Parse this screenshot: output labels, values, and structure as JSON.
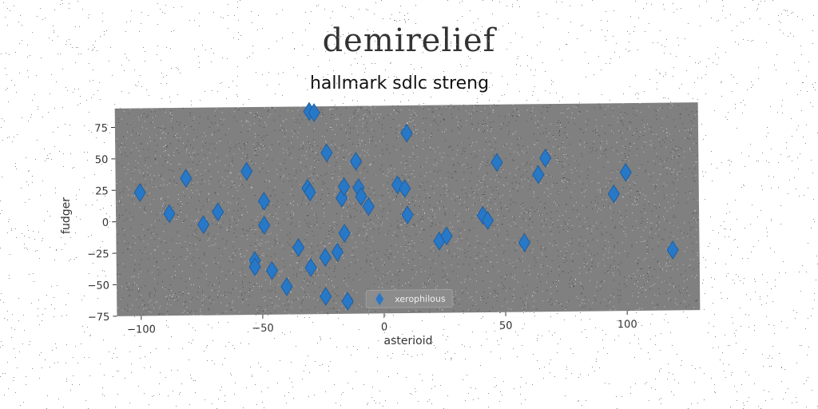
{
  "page": {
    "title": "demirelief"
  },
  "chart_data": {
    "type": "scatter",
    "title": "hallmark sdlc streng",
    "xlabel": "asterioid",
    "ylabel": "fudger",
    "xlim": [
      -110,
      130
    ],
    "ylim": [
      -75,
      90
    ],
    "xticks": [
      -100,
      -50,
      0,
      50,
      100
    ],
    "yticks": [
      -75,
      -50,
      -25,
      0,
      25,
      50,
      75
    ],
    "grid": false,
    "legend_position": "lower-center",
    "plot_background": "#808080",
    "series": [
      {
        "name": "xerophilous",
        "marker": "diamond",
        "color": "#2878c8",
        "points": [
          {
            "x": -100,
            "y": 23
          },
          {
            "x": -88,
            "y": 6
          },
          {
            "x": -81,
            "y": 34
          },
          {
            "x": -74,
            "y": -3
          },
          {
            "x": -68,
            "y": 7
          },
          {
            "x": -56,
            "y": 39
          },
          {
            "x": -53,
            "y": -32
          },
          {
            "x": -53,
            "y": -37
          },
          {
            "x": -49,
            "y": 15
          },
          {
            "x": -49,
            "y": -4
          },
          {
            "x": -46,
            "y": -40
          },
          {
            "x": -40,
            "y": -53
          },
          {
            "x": -35,
            "y": -22
          },
          {
            "x": -31,
            "y": 25
          },
          {
            "x": -30,
            "y": 22
          },
          {
            "x": -30,
            "y": -38
          },
          {
            "x": -30,
            "y": 86
          },
          {
            "x": -28,
            "y": 85
          },
          {
            "x": -24,
            "y": -61
          },
          {
            "x": -24,
            "y": -30
          },
          {
            "x": -23,
            "y": 53
          },
          {
            "x": -19,
            "y": -26
          },
          {
            "x": -17,
            "y": 17
          },
          {
            "x": -16,
            "y": 26
          },
          {
            "x": -16,
            "y": -11
          },
          {
            "x": -15,
            "y": -65
          },
          {
            "x": -11,
            "y": 46
          },
          {
            "x": -10,
            "y": 25
          },
          {
            "x": -9,
            "y": 18
          },
          {
            "x": -6,
            "y": 10
          },
          {
            "x": 6,
            "y": 27
          },
          {
            "x": 9,
            "y": 24
          },
          {
            "x": 10,
            "y": 68
          },
          {
            "x": 10,
            "y": 3
          },
          {
            "x": 23,
            "y": -18
          },
          {
            "x": 26,
            "y": -14
          },
          {
            "x": 41,
            "y": 2
          },
          {
            "x": 43,
            "y": -2
          },
          {
            "x": 47,
            "y": 44
          },
          {
            "x": 58,
            "y": -20
          },
          {
            "x": 64,
            "y": 34
          },
          {
            "x": 67,
            "y": 47
          },
          {
            "x": 95,
            "y": 18
          },
          {
            "x": 100,
            "y": 35
          },
          {
            "x": 119,
            "y": -27
          }
        ]
      }
    ]
  }
}
